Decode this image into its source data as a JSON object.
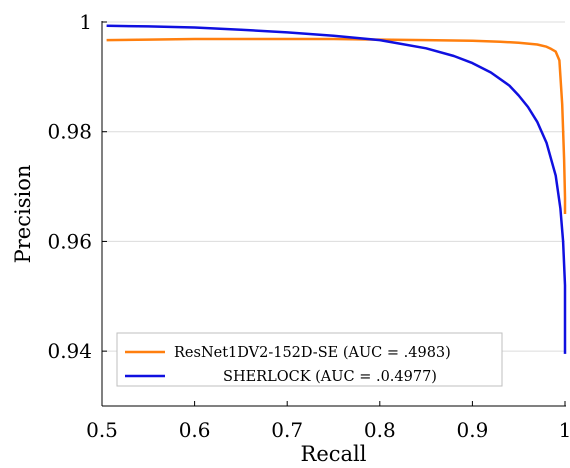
{
  "chart_data": {
    "type": "line",
    "xlabel": "Recall",
    "ylabel": "Precision",
    "xlim": [
      0.5,
      1.0
    ],
    "ylim": [
      0.93,
      1.0
    ],
    "xticks": [
      0.5,
      0.6,
      0.7,
      0.8,
      0.9,
      1
    ],
    "xtick_labels": [
      "0.5",
      "0.6",
      "0.7",
      "0.8",
      "0.9",
      "1"
    ],
    "yticks": [
      0.94,
      0.96,
      0.98,
      1
    ],
    "ytick_labels": [
      "0.94",
      "0.96",
      "0.98",
      "1"
    ],
    "grid": "horizontal",
    "legend_position": "bottom-left",
    "series": [
      {
        "name": "ResNet1DV2-152D-SE (AUC = .4983)",
        "color": "#ff7f0e",
        "x": [
          0.505,
          0.55,
          0.6,
          0.65,
          0.7,
          0.75,
          0.8,
          0.85,
          0.9,
          0.93,
          0.95,
          0.97,
          0.98,
          0.985,
          0.99,
          0.994,
          0.997,
          0.999,
          1.0,
          1.0
        ],
        "y": [
          0.9967,
          0.9968,
          0.9969,
          0.9969,
          0.9969,
          0.9969,
          0.9968,
          0.9967,
          0.9966,
          0.9964,
          0.9962,
          0.9959,
          0.9955,
          0.9951,
          0.9946,
          0.993,
          0.985,
          0.975,
          0.968,
          0.965
        ]
      },
      {
        "name": "SHERLOCK (AUC = .0.4977)",
        "color": "#1010e0",
        "x": [
          0.505,
          0.55,
          0.6,
          0.65,
          0.7,
          0.75,
          0.8,
          0.85,
          0.88,
          0.9,
          0.92,
          0.94,
          0.95,
          0.96,
          0.97,
          0.98,
          0.99,
          0.995,
          0.998,
          1.0,
          1.0
        ],
        "y": [
          0.9993,
          0.9992,
          0.999,
          0.9986,
          0.9981,
          0.9975,
          0.9967,
          0.9952,
          0.9938,
          0.9925,
          0.9908,
          0.9884,
          0.9866,
          0.9845,
          0.9818,
          0.978,
          0.972,
          0.966,
          0.96,
          0.952,
          0.9395
        ]
      }
    ]
  }
}
